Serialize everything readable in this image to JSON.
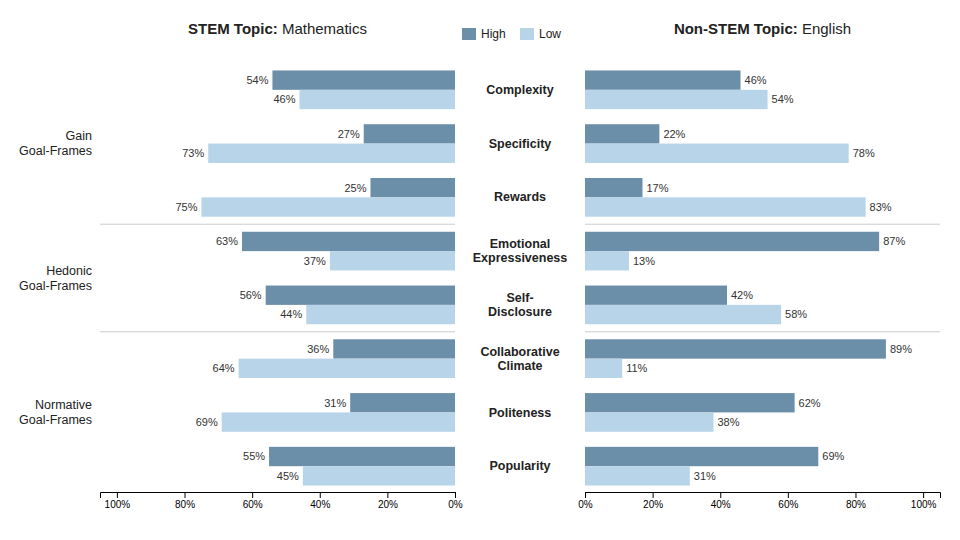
{
  "chart_data": [
    {
      "type": "bar",
      "orientation": "horizontal",
      "title": "STEM Topic: Mathematics",
      "categories": [
        "Complexity",
        "Specificity",
        "Rewards",
        "Emotional\nExpressiveness",
        "Self-\nDisclosure",
        "Collaborative\nClimate",
        "Politeness",
        "Popularity"
      ],
      "groups": [
        {
          "label": "Gain\nGoal-Frames",
          "categories": [
            "Complexity",
            "Specificity",
            "Rewards"
          ]
        },
        {
          "label": "Hedonic\nGoal-Frames",
          "categories": [
            "Emotional\nExpressiveness",
            "Self-\nDisclosure"
          ]
        },
        {
          "label": "Normative\nGoal-Frames",
          "categories": [
            "Collaborative\nClimate",
            "Politeness",
            "Popularity"
          ]
        }
      ],
      "series": [
        {
          "name": "High",
          "color": "#6b8fa8",
          "values": [
            54,
            27,
            25,
            63,
            56,
            36,
            31,
            55
          ],
          "value_labels": [
            "54%",
            "27%",
            "25%",
            "63%",
            "56%",
            "36%",
            "31%",
            "55%"
          ]
        },
        {
          "name": "Low",
          "color": "#b8d4e8",
          "values": [
            46,
            73,
            75,
            37,
            44,
            64,
            69,
            45
          ],
          "value_labels": [
            "46%",
            "73%",
            "75%",
            "37%",
            "44%",
            "64%",
            "69%",
            "45%"
          ]
        }
      ],
      "xlim": [
        105,
        0
      ],
      "xticks": [
        {
          "value": 100,
          "label": "100%"
        },
        {
          "value": 80,
          "label": "80%"
        },
        {
          "value": 60,
          "label": "60%"
        },
        {
          "value": 40,
          "label": "40%"
        },
        {
          "value": 20,
          "label": "20%"
        },
        {
          "value": 0,
          "label": "0%"
        }
      ],
      "data_labels": true,
      "grid": false,
      "legend": "top"
    },
    {
      "type": "bar",
      "orientation": "horizontal",
      "title": "Non-STEM Topic: English",
      "categories": [
        "Complexity",
        "Specificity",
        "Rewards",
        "Emotional\nExpressiveness",
        "Self-\nDisclosure",
        "Collaborative\nClimate",
        "Politeness",
        "Popularity"
      ],
      "series": [
        {
          "name": "High",
          "color": "#6b8fa8",
          "values": [
            46,
            22,
            17,
            87,
            42,
            89,
            62,
            69
          ],
          "value_labels": [
            "46%",
            "22%",
            "17%",
            "87%",
            "42%",
            "89%",
            "62%",
            "69%"
          ]
        },
        {
          "name": "Low",
          "color": "#b8d4e8",
          "values": [
            54,
            78,
            83,
            13,
            58,
            11,
            38,
            31
          ],
          "value_labels": [
            "54%",
            "78%",
            "83%",
            "13%",
            "58%",
            "11%",
            "38%",
            "31%"
          ]
        }
      ],
      "xlim": [
        0,
        105
      ],
      "xticks": [
        {
          "value": 0,
          "label": "0%"
        },
        {
          "value": 20,
          "label": "20%"
        },
        {
          "value": 40,
          "label": "40%"
        },
        {
          "value": 60,
          "label": "60%"
        },
        {
          "value": 80,
          "label": "80%"
        },
        {
          "value": 100,
          "label": "100%"
        }
      ],
      "data_labels": true,
      "grid": false
    }
  ]
}
